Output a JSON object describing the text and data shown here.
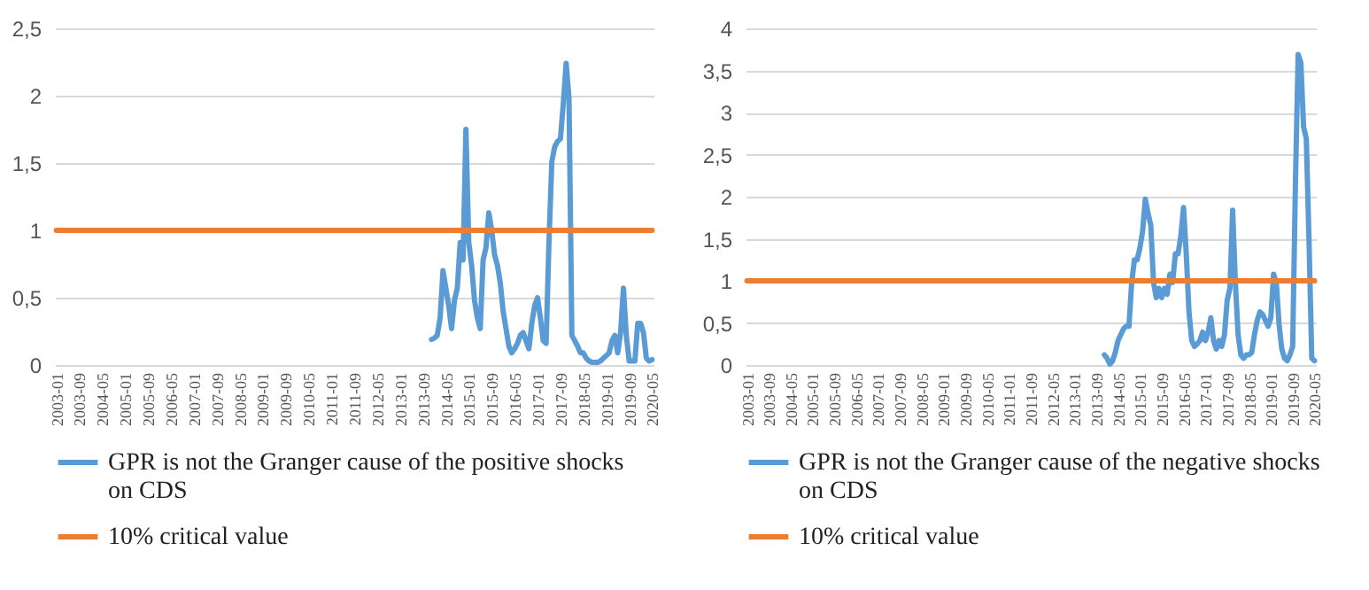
{
  "chart_data": [
    {
      "type": "line",
      "grid": "y",
      "legend": "bottom",
      "categories": [
        "2003-01",
        null,
        null,
        null,
        null,
        null,
        null,
        null,
        "2003-09",
        null,
        null,
        null,
        null,
        null,
        null,
        null,
        "2004-05",
        null,
        null,
        null,
        null,
        null,
        null,
        null,
        "2005-01",
        null,
        null,
        null,
        null,
        null,
        null,
        null,
        "2005-09",
        null,
        null,
        null,
        null,
        null,
        null,
        null,
        "2006-05",
        null,
        null,
        null,
        null,
        null,
        null,
        null,
        "2007-01",
        null,
        null,
        null,
        null,
        null,
        null,
        null,
        "2007-09",
        null,
        null,
        null,
        null,
        null,
        null,
        null,
        "2008-05",
        null,
        null,
        null,
        null,
        null,
        null,
        null,
        "2009-01",
        null,
        null,
        null,
        null,
        null,
        null,
        null,
        "2009-09",
        null,
        null,
        null,
        null,
        null,
        null,
        null,
        "2010-05",
        null,
        null,
        null,
        null,
        null,
        null,
        null,
        "2011-01",
        null,
        null,
        null,
        null,
        null,
        null,
        null,
        "2011-09",
        null,
        null,
        null,
        null,
        null,
        null,
        null,
        "2012-05",
        null,
        null,
        null,
        null,
        null,
        null,
        null,
        "2013-01",
        null,
        null,
        null,
        null,
        null,
        null,
        null,
        "2013-09",
        null,
        null,
        null,
        null,
        null,
        null,
        null,
        "2014-05",
        null,
        null,
        null,
        null,
        null,
        null,
        null,
        "2015-01",
        null,
        null,
        null,
        null,
        null,
        null,
        null,
        "2015-09",
        null,
        null,
        null,
        null,
        null,
        null,
        null,
        "2016-05",
        null,
        null,
        null,
        null,
        null,
        null,
        null,
        "2017-01",
        null,
        null,
        null,
        null,
        null,
        null,
        null,
        "2017-09",
        null,
        null,
        null,
        null,
        null,
        null,
        null,
        "2018-05",
        null,
        null,
        null,
        null,
        null,
        null,
        null,
        "2019-01",
        null,
        null,
        null,
        null,
        null,
        null,
        null,
        "2019-09",
        null,
        null,
        null,
        null,
        null,
        null,
        null,
        "2020-05"
      ],
      "ylim": [
        0,
        2.5
      ],
      "yticks": [
        0,
        {
          "value": 0.5,
          "label": "0,5"
        },
        1,
        {
          "value": 1.5,
          "label": "1,5"
        },
        2,
        {
          "value": 2.5,
          "label": "2,5"
        }
      ],
      "series": [
        {
          "name": "GPR is not the Granger cause of the positive shocks on CDS",
          "color": "#5b9bd5",
          "values": [
            null,
            null,
            null,
            null,
            null,
            null,
            null,
            null,
            null,
            null,
            null,
            null,
            null,
            null,
            null,
            null,
            null,
            null,
            null,
            null,
            null,
            null,
            null,
            null,
            null,
            null,
            null,
            null,
            null,
            null,
            null,
            null,
            null,
            null,
            null,
            null,
            null,
            null,
            null,
            null,
            null,
            null,
            null,
            null,
            null,
            null,
            null,
            null,
            null,
            null,
            null,
            null,
            null,
            null,
            null,
            null,
            null,
            null,
            null,
            null,
            null,
            null,
            null,
            null,
            null,
            null,
            null,
            null,
            null,
            null,
            null,
            null,
            null,
            null,
            null,
            null,
            null,
            null,
            null,
            null,
            null,
            null,
            null,
            null,
            null,
            null,
            null,
            null,
            null,
            null,
            null,
            null,
            null,
            null,
            null,
            null,
            null,
            null,
            null,
            null,
            null,
            null,
            null,
            null,
            null,
            null,
            null,
            null,
            null,
            null,
            null,
            null,
            null,
            null,
            null,
            null,
            null,
            null,
            null,
            null,
            null,
            null,
            null,
            null,
            null,
            null,
            null,
            null,
            null,
            null,
            null,
            0.19,
            0.2,
            0.22,
            0.35,
            0.7,
            0.57,
            0.44,
            0.27,
            0.48,
            0.57,
            0.91,
            0.78,
            1.75,
            0.91,
            0.74,
            0.48,
            0.35,
            0.27,
            0.78,
            0.87,
            1.13,
            1.0,
            0.82,
            0.74,
            0.61,
            0.4,
            0.27,
            0.14,
            0.09,
            0.12,
            0.16,
            0.22,
            0.24,
            0.18,
            0.12,
            0.31,
            0.44,
            0.5,
            0.35,
            0.18,
            0.16,
            0.91,
            1.51,
            1.62,
            1.66,
            1.68,
            1.94,
            2.24,
            1.98,
            0.22,
            0.18,
            0.14,
            0.09,
            0.09,
            0.05,
            0.03,
            0.02,
            0.02,
            0.02,
            0.03,
            0.05,
            0.07,
            0.09,
            0.18,
            0.22,
            0.09,
            0.24,
            0.57,
            0.22,
            0.03,
            0.03,
            0.03,
            0.31,
            0.31,
            0.24,
            0.05,
            0.03,
            0.04
          ]
        },
        {
          "name": "10% critical value",
          "color": "#ed7d31",
          "values": [
            1,
            1,
            1,
            1,
            1,
            1,
            1,
            1,
            1,
            1,
            1,
            1,
            1,
            1,
            1,
            1,
            1,
            1,
            1,
            1,
            1,
            1,
            1,
            1,
            1,
            1,
            1,
            1,
            1,
            1,
            1,
            1,
            1,
            1,
            1,
            1,
            1,
            1,
            1,
            1,
            1,
            1,
            1,
            1,
            1,
            1,
            1,
            1,
            1,
            1,
            1,
            1,
            1,
            1,
            1,
            1,
            1,
            1,
            1,
            1,
            1,
            1,
            1,
            1,
            1,
            1,
            1,
            1,
            1,
            1,
            1,
            1,
            1,
            1,
            1,
            1,
            1,
            1,
            1,
            1,
            1,
            1,
            1,
            1,
            1,
            1,
            1,
            1,
            1,
            1,
            1,
            1,
            1,
            1,
            1,
            1,
            1,
            1,
            1,
            1,
            1,
            1,
            1,
            1,
            1,
            1,
            1,
            1,
            1,
            1,
            1,
            1,
            1,
            1,
            1,
            1,
            1,
            1,
            1,
            1,
            1,
            1,
            1,
            1,
            1,
            1,
            1,
            1,
            1,
            1,
            1,
            1,
            1,
            1,
            1,
            1,
            1,
            1,
            1,
            1,
            1,
            1,
            1,
            1,
            1,
            1,
            1,
            1,
            1,
            1,
            1,
            1,
            1,
            1,
            1,
            1,
            1,
            1,
            1,
            1,
            1,
            1,
            1,
            1,
            1,
            1,
            1,
            1,
            1,
            1,
            1,
            1,
            1,
            1,
            1,
            1,
            1,
            1,
            1,
            1,
            1,
            1,
            1,
            1,
            1,
            1,
            1,
            1,
            1,
            1,
            1,
            1,
            1,
            1,
            1,
            1,
            1,
            1,
            1,
            1,
            1,
            1,
            1,
            1,
            1,
            1,
            1,
            1,
            1
          ]
        }
      ]
    },
    {
      "type": "line",
      "grid": "y",
      "legend": "bottom",
      "categories": [
        "2003-01",
        null,
        null,
        null,
        null,
        null,
        null,
        null,
        "2003-09",
        null,
        null,
        null,
        null,
        null,
        null,
        null,
        "2004-05",
        null,
        null,
        null,
        null,
        null,
        null,
        null,
        "2005-01",
        null,
        null,
        null,
        null,
        null,
        null,
        null,
        "2005-09",
        null,
        null,
        null,
        null,
        null,
        null,
        null,
        "2006-05",
        null,
        null,
        null,
        null,
        null,
        null,
        null,
        "2007-01",
        null,
        null,
        null,
        null,
        null,
        null,
        null,
        "2007-09",
        null,
        null,
        null,
        null,
        null,
        null,
        null,
        "2008-05",
        null,
        null,
        null,
        null,
        null,
        null,
        null,
        "2009-01",
        null,
        null,
        null,
        null,
        null,
        null,
        null,
        "2009-09",
        null,
        null,
        null,
        null,
        null,
        null,
        null,
        "2010-05",
        null,
        null,
        null,
        null,
        null,
        null,
        null,
        "2011-01",
        null,
        null,
        null,
        null,
        null,
        null,
        null,
        "2011-09",
        null,
        null,
        null,
        null,
        null,
        null,
        null,
        "2012-05",
        null,
        null,
        null,
        null,
        null,
        null,
        null,
        "2013-01",
        null,
        null,
        null,
        null,
        null,
        null,
        null,
        "2013-09",
        null,
        null,
        null,
        null,
        null,
        null,
        null,
        "2014-05",
        null,
        null,
        null,
        null,
        null,
        null,
        null,
        "2015-01",
        null,
        null,
        null,
        null,
        null,
        null,
        null,
        "2015-09",
        null,
        null,
        null,
        null,
        null,
        null,
        null,
        "2016-05",
        null,
        null,
        null,
        null,
        null,
        null,
        null,
        "2017-01",
        null,
        null,
        null,
        null,
        null,
        null,
        null,
        "2017-09",
        null,
        null,
        null,
        null,
        null,
        null,
        null,
        "2018-05",
        null,
        null,
        null,
        null,
        null,
        null,
        null,
        "2019-01",
        null,
        null,
        null,
        null,
        null,
        null,
        null,
        "2019-09",
        null,
        null,
        null,
        null,
        null,
        null,
        null,
        "2020-05"
      ],
      "ylim": [
        0,
        4
      ],
      "yticks": [
        0,
        {
          "value": 0.5,
          "label": "0,5"
        },
        1,
        {
          "value": 1.5,
          "label": "1,5"
        },
        2,
        {
          "value": 2.5,
          "label": "2,5"
        },
        3,
        {
          "value": 3.5,
          "label": "3,5"
        },
        4
      ],
      "series": [
        {
          "name": "GPR is not the Granger cause of the negative shocks on CDS",
          "color": "#5b9bd5",
          "values": [
            null,
            null,
            null,
            null,
            null,
            null,
            null,
            null,
            null,
            null,
            null,
            null,
            null,
            null,
            null,
            null,
            null,
            null,
            null,
            null,
            null,
            null,
            null,
            null,
            null,
            null,
            null,
            null,
            null,
            null,
            null,
            null,
            null,
            null,
            null,
            null,
            null,
            null,
            null,
            null,
            null,
            null,
            null,
            null,
            null,
            null,
            null,
            null,
            null,
            null,
            null,
            null,
            null,
            null,
            null,
            null,
            null,
            null,
            null,
            null,
            null,
            null,
            null,
            null,
            null,
            null,
            null,
            null,
            null,
            null,
            null,
            null,
            null,
            null,
            null,
            null,
            null,
            null,
            null,
            null,
            null,
            null,
            null,
            null,
            null,
            null,
            null,
            null,
            null,
            null,
            null,
            null,
            null,
            null,
            null,
            null,
            null,
            null,
            null,
            null,
            null,
            null,
            null,
            null,
            null,
            null,
            null,
            null,
            null,
            null,
            null,
            null,
            null,
            null,
            null,
            null,
            null,
            null,
            null,
            null,
            null,
            null,
            null,
            null,
            null,
            null,
            null,
            null,
            null,
            null,
            null,
            0.12,
            0.08,
            0.01,
            0.05,
            0.15,
            0.29,
            0.36,
            0.43,
            0.46,
            0.46,
            0.98,
            1.25,
            1.25,
            1.39,
            1.59,
            1.97,
            1.8,
            1.66,
            0.98,
            0.8,
            0.91,
            0.8,
            0.91,
            0.84,
            1.08,
            0.98,
            1.32,
            1.32,
            1.53,
            1.87,
            1.32,
            0.63,
            0.29,
            0.22,
            0.25,
            0.29,
            0.39,
            0.29,
            0.39,
            0.56,
            0.29,
            0.19,
            0.29,
            0.22,
            0.36,
            0.77,
            0.91,
            1.84,
            0.98,
            0.36,
            0.12,
            0.08,
            0.12,
            0.12,
            0.15,
            0.36,
            0.53,
            0.63,
            0.6,
            0.53,
            0.46,
            0.56,
            1.08,
            0.98,
            0.49,
            0.19,
            0.08,
            0.05,
            0.12,
            0.22,
            2.14,
            3.69,
            3.59,
            2.83,
            2.69,
            1.46,
            0.08,
            0.05
          ]
        },
        {
          "name": "10% critical value",
          "color": "#ed7d31",
          "values": [
            1,
            1,
            1,
            1,
            1,
            1,
            1,
            1,
            1,
            1,
            1,
            1,
            1,
            1,
            1,
            1,
            1,
            1,
            1,
            1,
            1,
            1,
            1,
            1,
            1,
            1,
            1,
            1,
            1,
            1,
            1,
            1,
            1,
            1,
            1,
            1,
            1,
            1,
            1,
            1,
            1,
            1,
            1,
            1,
            1,
            1,
            1,
            1,
            1,
            1,
            1,
            1,
            1,
            1,
            1,
            1,
            1,
            1,
            1,
            1,
            1,
            1,
            1,
            1,
            1,
            1,
            1,
            1,
            1,
            1,
            1,
            1,
            1,
            1,
            1,
            1,
            1,
            1,
            1,
            1,
            1,
            1,
            1,
            1,
            1,
            1,
            1,
            1,
            1,
            1,
            1,
            1,
            1,
            1,
            1,
            1,
            1,
            1,
            1,
            1,
            1,
            1,
            1,
            1,
            1,
            1,
            1,
            1,
            1,
            1,
            1,
            1,
            1,
            1,
            1,
            1,
            1,
            1,
            1,
            1,
            1,
            1,
            1,
            1,
            1,
            1,
            1,
            1,
            1,
            1,
            1,
            1,
            1,
            1,
            1,
            1,
            1,
            1,
            1,
            1,
            1,
            1,
            1,
            1,
            1,
            1,
            1,
            1,
            1,
            1,
            1,
            1,
            1,
            1,
            1,
            1,
            1,
            1,
            1,
            1,
            1,
            1,
            1,
            1,
            1,
            1,
            1,
            1,
            1,
            1,
            1,
            1,
            1,
            1,
            1,
            1,
            1,
            1,
            1,
            1,
            1,
            1,
            1,
            1,
            1,
            1,
            1,
            1,
            1,
            1,
            1,
            1,
            1,
            1,
            1,
            1,
            1,
            1,
            1,
            1,
            1,
            1,
            1,
            1,
            1,
            1,
            1,
            1,
            1
          ]
        }
      ]
    }
  ]
}
